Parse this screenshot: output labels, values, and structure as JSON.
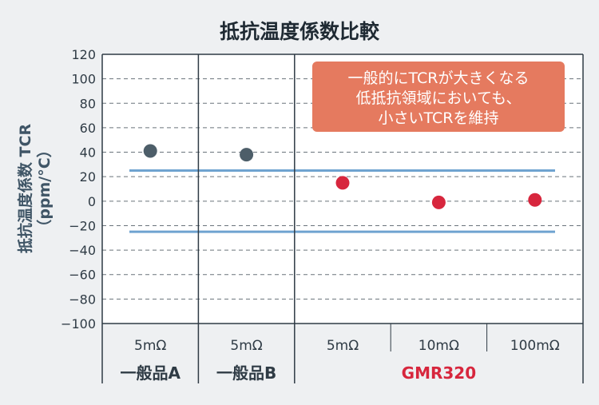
{
  "chart_data": {
    "type": "scatter",
    "title": "抵抗温度係数比較",
    "ylabel": "抵抗温度係数 TCR\n（ppm/°C）",
    "ylim": [
      -100,
      120
    ],
    "y_ticks": [
      "120",
      "100",
      "80",
      "60",
      "40",
      "20",
      "0",
      "−20",
      "−40",
      "−60",
      "−80",
      "−100"
    ],
    "y_tick_values": [
      120,
      100,
      80,
      60,
      40,
      20,
      0,
      -20,
      -40,
      -60,
      -80,
      -100
    ],
    "grid": "dashed horizontal",
    "categories": [
      "5mΩ",
      "5mΩ",
      "5mΩ",
      "10mΩ",
      "100mΩ"
    ],
    "groups": [
      {
        "name": "一般品A",
        "span": [
          0,
          0
        ],
        "color": "#2f3b45"
      },
      {
        "name": "一般品B",
        "span": [
          1,
          1
        ],
        "color": "#2f3b45"
      },
      {
        "name": "GMR320",
        "span": [
          2,
          4
        ],
        "color": "#d7263d"
      }
    ],
    "points": [
      {
        "category_index": 0,
        "y": 41,
        "color": "#4d5e69"
      },
      {
        "category_index": 1,
        "y": 38,
        "color": "#4d5e69"
      },
      {
        "category_index": 2,
        "y": 15,
        "color": "#d7263d"
      },
      {
        "category_index": 3,
        "y": -1,
        "color": "#d7263d"
      },
      {
        "category_index": 4,
        "y": 1,
        "color": "#d7263d"
      }
    ],
    "reference_lines": [
      {
        "y": 25,
        "color": "#6fa3d0"
      },
      {
        "y": -25,
        "color": "#6fa3d0"
      }
    ],
    "annotation": {
      "lines": [
        "一般的にTCRが大きくなる",
        "低抵抗領域においても、",
        "小さいTCRを維持"
      ],
      "fill": "#e57a5f",
      "text_color": "#ffffff"
    }
  }
}
